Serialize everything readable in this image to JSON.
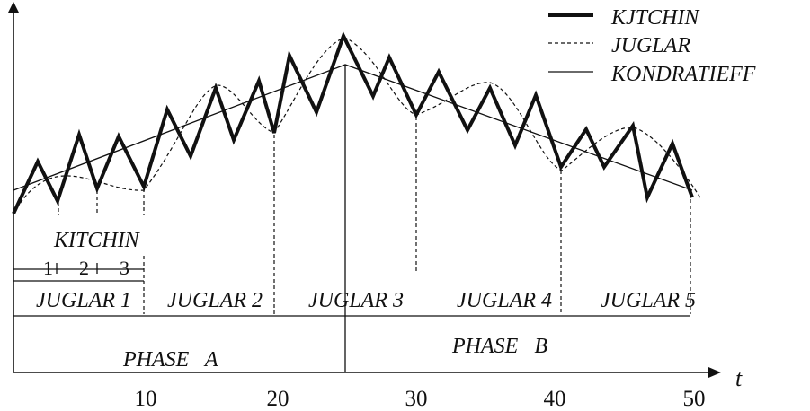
{
  "legend": {
    "kitchin": "KJTCHIN",
    "juglar": "JUGLAR",
    "kondratieff": "KONDRATIEFF"
  },
  "axis": {
    "x_label": "t",
    "ticks": [
      "10",
      "20",
      "30",
      "40",
      "50"
    ]
  },
  "annotations": {
    "kitchin_title": "KITCHIN",
    "kitchin_numbers": [
      "1",
      "2",
      "3"
    ],
    "juglar_labels": [
      "JUGLAR 1",
      "JUGLAR 2",
      "JUGLAR 3",
      "JUGLAR 4",
      "JUGLAR 5"
    ],
    "phase_a": "PHASE   A",
    "phase_b": "PHASE   B"
  }
}
